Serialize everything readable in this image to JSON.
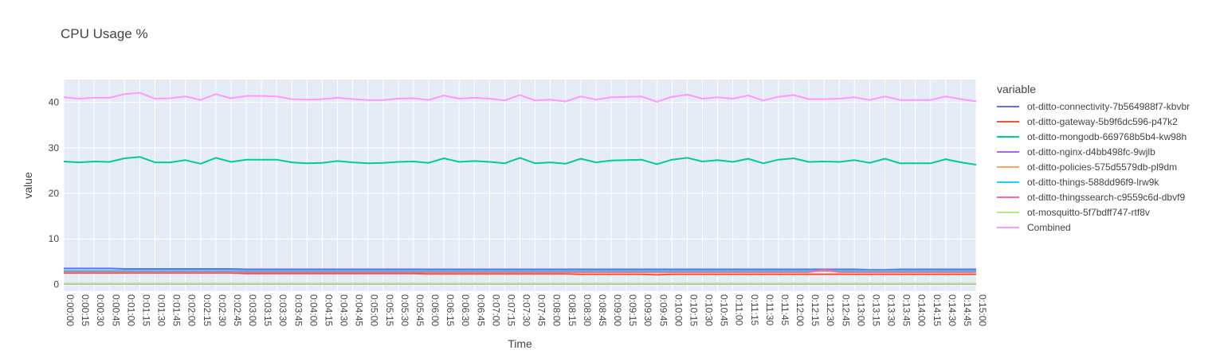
{
  "chart_data": {
    "type": "line",
    "title": "CPU Usage %",
    "xlabel": "Time",
    "ylabel": "value",
    "legend_title": "variable",
    "legend_placement": "right",
    "grid": true,
    "ylim": [
      -1.5,
      45
    ],
    "yticks": [
      0,
      10,
      20,
      30,
      40
    ],
    "x": [
      "0:00:00",
      "0:00:15",
      "0:00:30",
      "0:00:45",
      "0:01:00",
      "0:01:15",
      "0:01:30",
      "0:01:45",
      "0:02:00",
      "0:02:15",
      "0:02:30",
      "0:02:45",
      "0:03:00",
      "0:03:15",
      "0:03:30",
      "0:03:45",
      "0:04:00",
      "0:04:15",
      "0:04:30",
      "0:04:45",
      "0:05:00",
      "0:05:15",
      "0:05:30",
      "0:05:45",
      "0:06:00",
      "0:06:15",
      "0:06:30",
      "0:06:45",
      "0:07:00",
      "0:07:15",
      "0:07:30",
      "0:07:45",
      "0:08:00",
      "0:08:15",
      "0:08:30",
      "0:08:45",
      "0:09:00",
      "0:09:15",
      "0:09:30",
      "0:09:45",
      "0:10:00",
      "0:10:15",
      "0:10:30",
      "0:10:45",
      "0:11:00",
      "0:11:15",
      "0:11:30",
      "0:11:45",
      "0:12:00",
      "0:12:15",
      "0:12:30",
      "0:12:45",
      "0:13:00",
      "0:13:15",
      "0:13:30",
      "0:13:45",
      "0:14:00",
      "0:14:15",
      "0:14:30",
      "0:14:45",
      "0:15:00"
    ],
    "series": [
      {
        "name": "ot-ditto-connectivity-7b564988f7-kbvbr",
        "color": "#636efa",
        "values": [
          3.5,
          3.5,
          3.5,
          3.5,
          3.4,
          3.4,
          3.4,
          3.4,
          3.4,
          3.4,
          3.4,
          3.4,
          3.3,
          3.3,
          3.3,
          3.3,
          3.3,
          3.3,
          3.3,
          3.3,
          3.3,
          3.3,
          3.3,
          3.3,
          3.3,
          3.3,
          3.3,
          3.3,
          3.3,
          3.3,
          3.3,
          3.3,
          3.3,
          3.3,
          3.3,
          3.3,
          3.3,
          3.3,
          3.3,
          3.3,
          3.3,
          3.3,
          3.3,
          3.3,
          3.3,
          3.3,
          3.3,
          3.3,
          3.3,
          3.3,
          3.3,
          3.3,
          3.3,
          3.2,
          3.2,
          3.3,
          3.3,
          3.3,
          3.3,
          3.3,
          3.3
        ]
      },
      {
        "name": "ot-ditto-gateway-5b9f6dc596-p47k2",
        "color": "#ef553b",
        "values": [
          2.5,
          2.5,
          2.5,
          2.5,
          2.5,
          2.5,
          2.5,
          2.5,
          2.5,
          2.5,
          2.5,
          2.5,
          2.4,
          2.4,
          2.4,
          2.4,
          2.4,
          2.4,
          2.4,
          2.4,
          2.4,
          2.4,
          2.4,
          2.4,
          2.3,
          2.3,
          2.3,
          2.3,
          2.3,
          2.3,
          2.3,
          2.3,
          2.3,
          2.3,
          2.2,
          2.2,
          2.2,
          2.2,
          2.2,
          2.1,
          2.2,
          2.2,
          2.2,
          2.2,
          2.2,
          2.2,
          2.2,
          2.2,
          2.2,
          2.2,
          2.2,
          2.2,
          2.2,
          2.2,
          2.2,
          2.2,
          2.2,
          2.2,
          2.2,
          2.2,
          2.2
        ]
      },
      {
        "name": "ot-ditto-mongodb-669768b5b4-kw98h",
        "color": "#00cc96",
        "values": [
          27.0,
          26.8,
          27.0,
          26.9,
          27.7,
          28.0,
          26.8,
          26.8,
          27.3,
          26.5,
          27.8,
          26.9,
          27.4,
          27.4,
          27.4,
          26.8,
          26.6,
          26.7,
          27.1,
          26.8,
          26.6,
          26.7,
          26.9,
          27.0,
          26.7,
          27.7,
          26.9,
          27.1,
          26.9,
          26.6,
          27.8,
          26.6,
          26.8,
          26.5,
          27.6,
          26.8,
          27.2,
          27.3,
          27.4,
          26.4,
          27.4,
          27.8,
          27.0,
          27.3,
          26.9,
          27.6,
          26.6,
          27.4,
          27.7,
          26.9,
          27.0,
          26.9,
          27.3,
          26.7,
          27.6,
          26.6,
          26.6,
          26.6,
          27.5,
          26.8,
          26.3
        ]
      },
      {
        "name": "ot-ditto-nginx-d4bb498fc-9wjlb",
        "color": "#ab63fa",
        "values": [
          0.1,
          0.1,
          0.1,
          0.1,
          0.1,
          0.1,
          0.1,
          0.1,
          0.1,
          0.1,
          0.1,
          0.1,
          0.1,
          0.1,
          0.1,
          0.1,
          0.1,
          0.1,
          0.1,
          0.1,
          0.1,
          0.1,
          0.1,
          0.1,
          0.1,
          0.1,
          0.1,
          0.1,
          0.1,
          0.1,
          0.1,
          0.1,
          0.1,
          0.1,
          0.1,
          0.1,
          0.1,
          0.1,
          0.1,
          0.1,
          0.1,
          0.1,
          0.1,
          0.1,
          0.1,
          0.1,
          0.1,
          0.1,
          0.1,
          0.1,
          0.1,
          0.1,
          0.1,
          0.1,
          0.1,
          0.1,
          0.1,
          0.1,
          0.1,
          0.1,
          0.1
        ]
      },
      {
        "name": "ot-ditto-policies-575d5579db-pl9dm",
        "color": "#ffa15a",
        "values": [
          2.9,
          2.9,
          2.9,
          2.9,
          2.9,
          2.9,
          2.9,
          2.9,
          2.9,
          2.9,
          2.9,
          2.9,
          2.9,
          2.9,
          2.9,
          2.9,
          2.9,
          2.9,
          2.9,
          2.9,
          2.9,
          2.9,
          2.9,
          2.9,
          2.9,
          2.9,
          2.9,
          2.9,
          2.9,
          2.9,
          2.9,
          2.9,
          2.9,
          2.9,
          2.9,
          2.9,
          2.9,
          2.9,
          2.9,
          2.9,
          2.9,
          2.9,
          2.9,
          2.9,
          2.9,
          2.9,
          2.9,
          2.9,
          2.9,
          2.9,
          2.9,
          2.9,
          2.9,
          2.9,
          2.9,
          2.9,
          2.9,
          2.9,
          2.9,
          2.9,
          2.9
        ]
      },
      {
        "name": "ot-ditto-things-588dd96f9-lrw9k",
        "color": "#19d3f3",
        "values": [
          3.0,
          3.0,
          3.0,
          3.0,
          3.0,
          3.0,
          3.0,
          3.0,
          3.0,
          3.0,
          3.0,
          3.0,
          3.0,
          3.0,
          3.0,
          3.0,
          3.0,
          3.0,
          3.0,
          3.0,
          3.0,
          3.0,
          3.0,
          3.0,
          3.0,
          3.0,
          3.0,
          3.0,
          3.0,
          3.0,
          3.0,
          3.0,
          3.0,
          3.0,
          3.0,
          3.0,
          3.0,
          3.0,
          3.0,
          3.0,
          3.0,
          3.0,
          3.0,
          3.0,
          3.0,
          3.0,
          3.0,
          3.0,
          3.0,
          3.0,
          3.0,
          3.0,
          3.0,
          3.0,
          3.0,
          3.0,
          3.0,
          3.0,
          3.0,
          3.0,
          3.0
        ]
      },
      {
        "name": "ot-ditto-thingssearch-c9559c6d-dbvf9",
        "color": "#ff6692",
        "values": [
          2.7,
          2.7,
          2.7,
          2.7,
          2.7,
          2.7,
          2.7,
          2.7,
          2.7,
          2.7,
          2.7,
          2.7,
          2.7,
          2.7,
          2.7,
          2.7,
          2.7,
          2.7,
          2.7,
          2.7,
          2.7,
          2.7,
          2.7,
          2.7,
          2.7,
          2.7,
          2.7,
          2.7,
          2.7,
          2.7,
          2.7,
          2.7,
          2.7,
          2.7,
          2.7,
          2.7,
          2.7,
          2.7,
          2.7,
          2.7,
          2.7,
          2.7,
          2.7,
          2.7,
          2.7,
          2.7,
          2.7,
          2.7,
          2.7,
          2.7,
          3.2,
          2.7,
          2.7,
          2.7,
          2.7,
          2.7,
          2.7,
          2.7,
          2.7,
          2.7,
          2.7
        ]
      },
      {
        "name": "ot-mosquitto-5f7bdff747-rtf8v",
        "color": "#b6e880",
        "values": [
          0.2,
          0.2,
          0.2,
          0.2,
          0.2,
          0.2,
          0.2,
          0.2,
          0.2,
          0.2,
          0.2,
          0.2,
          0.2,
          0.2,
          0.2,
          0.2,
          0.2,
          0.2,
          0.2,
          0.2,
          0.2,
          0.2,
          0.2,
          0.2,
          0.2,
          0.2,
          0.2,
          0.2,
          0.2,
          0.2,
          0.2,
          0.2,
          0.2,
          0.2,
          0.2,
          0.2,
          0.2,
          0.2,
          0.2,
          0.2,
          0.2,
          0.2,
          0.2,
          0.2,
          0.2,
          0.2,
          0.2,
          0.2,
          0.2,
          0.2,
          0.2,
          0.2,
          0.2,
          0.2,
          0.2,
          0.2,
          0.2,
          0.2,
          0.2,
          0.2,
          0.2
        ]
      },
      {
        "name": "Combined",
        "color": "#ff97ff",
        "values": [
          41.1,
          40.8,
          41.0,
          41.0,
          41.8,
          42.1,
          40.8,
          40.9,
          41.3,
          40.5,
          41.8,
          40.9,
          41.4,
          41.4,
          41.3,
          40.7,
          40.6,
          40.7,
          41.0,
          40.7,
          40.5,
          40.5,
          40.8,
          40.9,
          40.5,
          41.5,
          40.8,
          41.0,
          40.8,
          40.4,
          41.6,
          40.4,
          40.6,
          40.2,
          41.3,
          40.6,
          41.1,
          41.2,
          41.3,
          40.1,
          41.2,
          41.7,
          40.8,
          41.1,
          40.8,
          41.5,
          40.4,
          41.2,
          41.6,
          40.7,
          40.7,
          40.8,
          41.1,
          40.5,
          41.3,
          40.5,
          40.5,
          40.5,
          41.3,
          40.7,
          40.2
        ]
      }
    ]
  }
}
